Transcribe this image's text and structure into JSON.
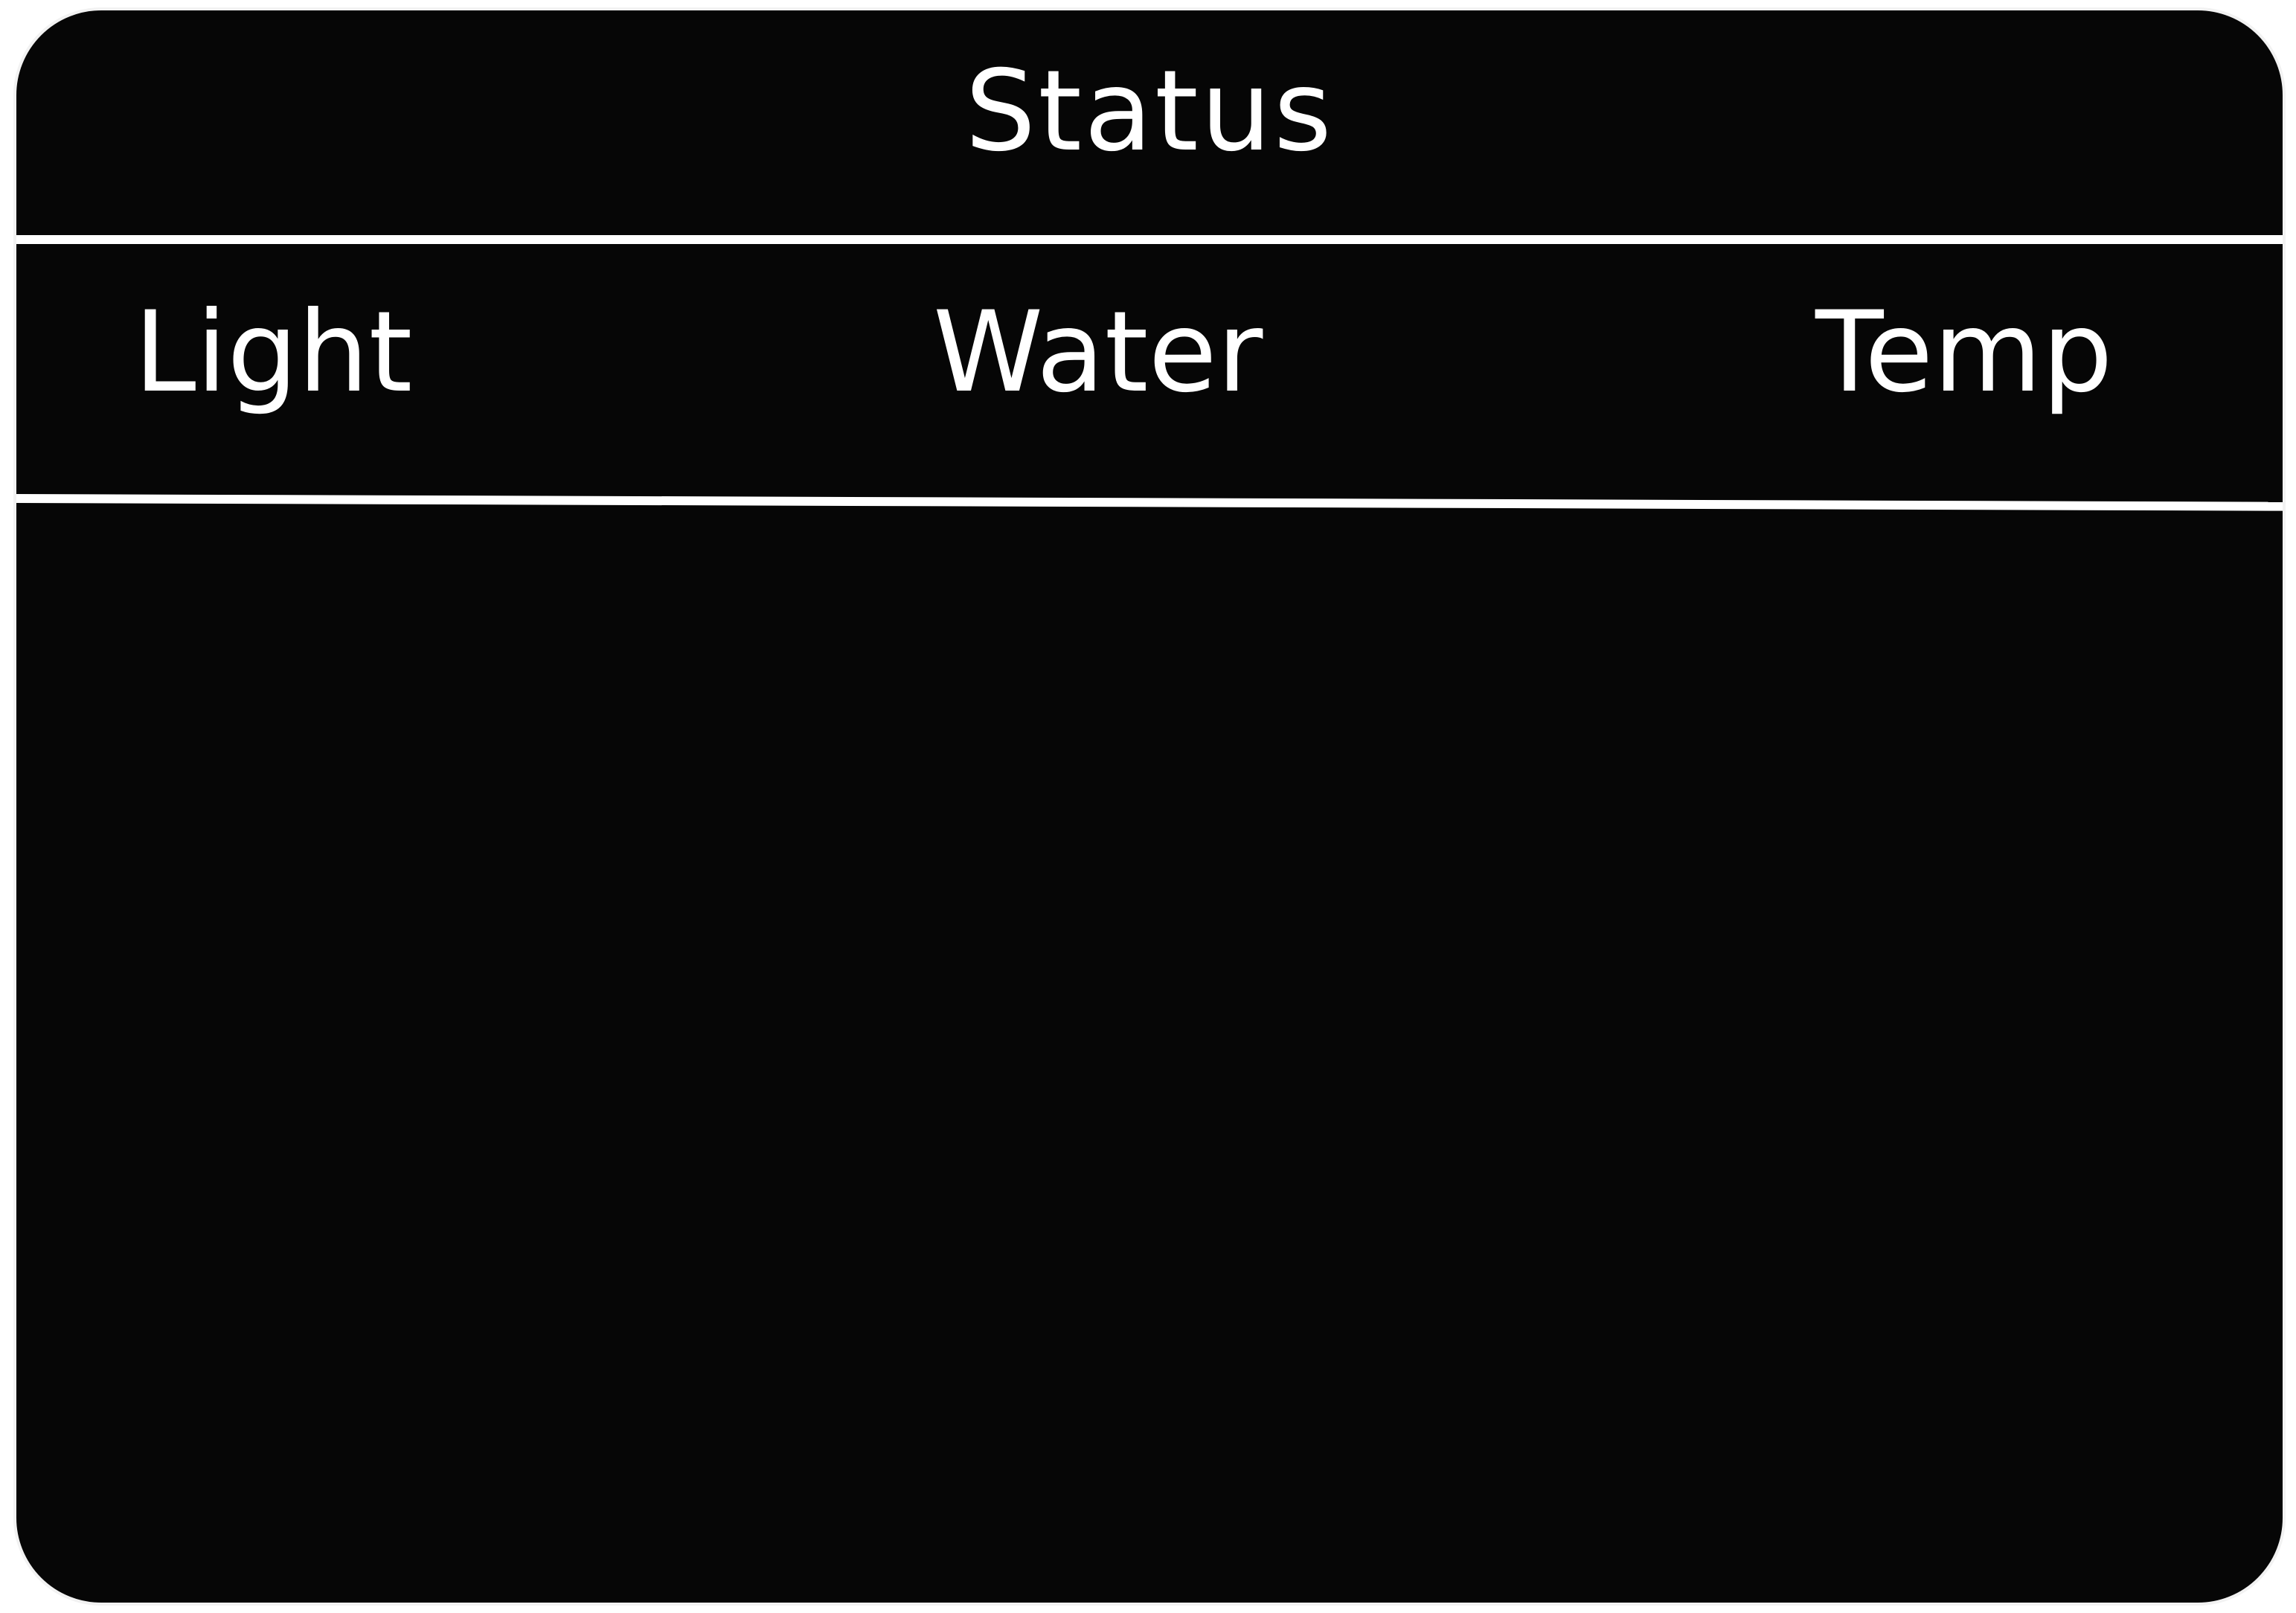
{
  "panel": {
    "title": "Status",
    "columns": [
      {
        "label": "Light"
      },
      {
        "label": "Water"
      },
      {
        "label": "Temp"
      }
    ],
    "background_color": "#060606",
    "text_color": "#ffffff",
    "border_color": "#f2f2f2"
  }
}
